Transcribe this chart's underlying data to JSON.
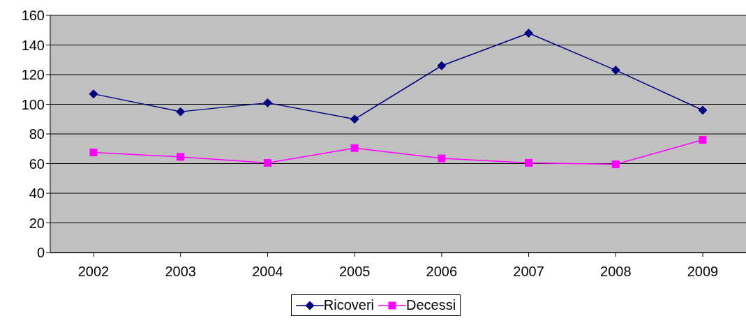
{
  "chart_data": {
    "type": "line",
    "categories": [
      "2002",
      "2003",
      "2004",
      "2005",
      "2006",
      "2007",
      "2008",
      "2009"
    ],
    "series": [
      {
        "name": "Ricoveri",
        "color": "#000080",
        "marker": "diamond",
        "values": [
          107,
          95,
          101,
          90,
          126,
          148,
          123,
          96
        ]
      },
      {
        "name": "Decessi",
        "color": "#ff00ff",
        "marker": "square",
        "values": [
          67.5,
          64.5,
          60.5,
          70.5,
          63.5,
          60.5,
          59.5,
          76
        ]
      }
    ],
    "ylim": [
      0,
      160
    ],
    "yticks": [
      0,
      20,
      40,
      60,
      80,
      100,
      120,
      140,
      160
    ],
    "grid": "y",
    "legend": "bottom",
    "line_style": "solid"
  }
}
